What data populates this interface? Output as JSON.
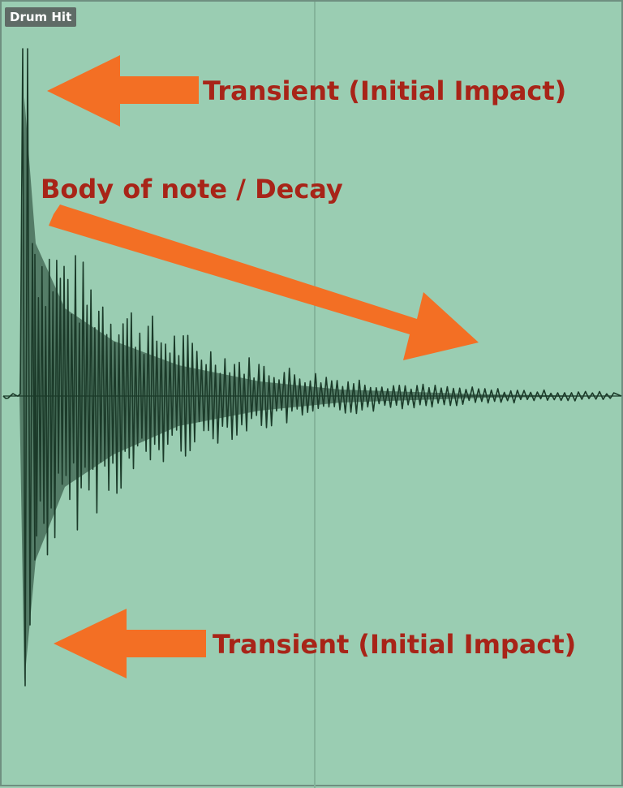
{
  "clip": {
    "name": "Drum Hit",
    "background_color": "#9acdb2",
    "waveform_color": "#1b3a29"
  },
  "annotations": {
    "transient_top": "Transient (Initial Impact)",
    "body": "Body of note / Decay",
    "transient_bottom": "Transient (Initial Impact)",
    "text_color": "#a82418",
    "arrow_color": "#f36f24"
  }
}
